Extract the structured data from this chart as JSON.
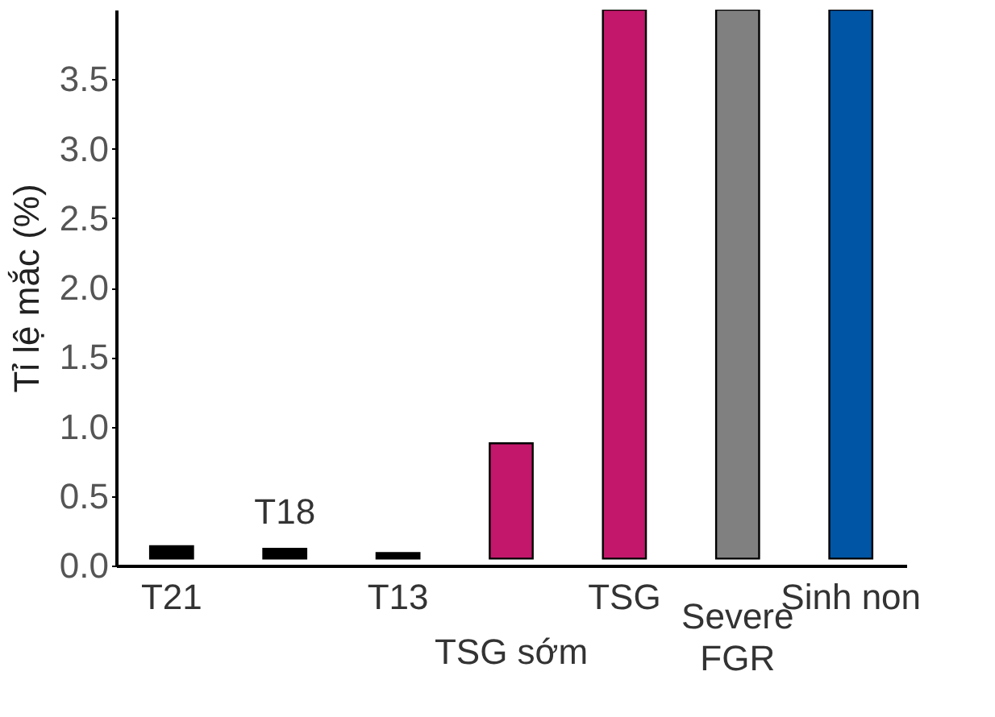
{
  "chart_data": {
    "type": "bar",
    "ylabel": "Tỉ lệ mắc (%)",
    "categories": [
      "T21",
      "T18",
      "T13",
      "TSG sớm",
      "TSG",
      "Severe FGR",
      "Sinh non"
    ],
    "base": [
      0.05,
      0.05,
      0.05,
      0.05,
      0.05,
      0.05,
      0.05
    ],
    "values": [
      0.09,
      0.07,
      0.04,
      0.83,
      3.95,
      3.95,
      3.95
    ],
    "colors": [
      "#000000",
      "#000000",
      "#000000",
      "#c2176b",
      "#c2176b",
      "#808080",
      "#0055a4"
    ],
    "ylim": [
      0,
      4.0
    ],
    "yticks": [
      {
        "value": 0,
        "label": "0.0"
      },
      0.5,
      {
        "value": 1,
        "label": "1.0"
      },
      1.5,
      {
        "value": 2,
        "label": "2.0"
      },
      2.5,
      {
        "value": 3,
        "label": "3.0"
      },
      3.5
    ],
    "grid": false,
    "legend": false
  }
}
